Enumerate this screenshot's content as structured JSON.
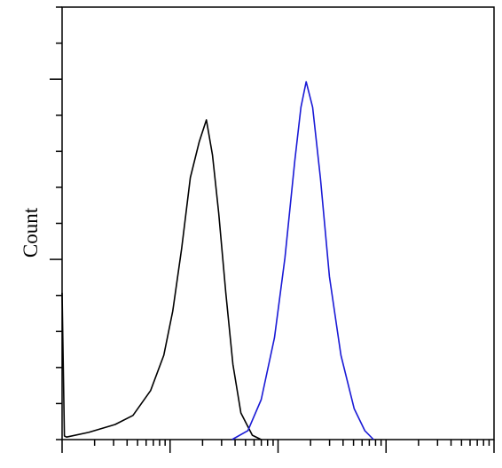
{
  "chart_data": {
    "type": "line",
    "ylabel": "Count",
    "xscale": "log",
    "xlim": [
      1,
      10000
    ],
    "xticks": [
      1,
      2,
      3,
      4,
      5,
      6,
      7,
      8,
      9,
      10,
      20,
      30,
      40,
      50,
      60,
      70,
      80,
      90,
      100,
      200,
      300,
      400,
      500,
      600,
      700,
      800,
      900,
      1000,
      2000,
      3000,
      4000,
      5000,
      6000,
      7000,
      8000,
      9000,
      10000
    ],
    "ylim": [
      0,
      12
    ],
    "yticks": [
      0,
      1,
      2,
      3,
      4,
      5,
      6,
      7,
      8,
      9,
      10,
      11,
      12
    ],
    "series": [
      {
        "color": "#000000",
        "x": [
          1.0,
          1.05,
          1.1,
          1.76,
          3.1,
          4.53,
          6.6,
          8.76,
          10.6,
          12.8,
          15.4,
          18.6,
          21.7,
          24.7,
          28.2,
          32.8,
          38.2,
          45.3,
          57.8,
          69.8
        ],
        "values": [
          4.07,
          0.1,
          0.07,
          0.2,
          0.42,
          0.67,
          1.36,
          2.34,
          3.57,
          5.3,
          7.27,
          8.26,
          8.87,
          7.89,
          6.28,
          4.07,
          2.09,
          0.74,
          0.12,
          0
        ]
      },
      {
        "color": "#1a1ad6",
        "x": [
          37.5,
          52.6,
          69.8,
          92.7,
          116,
          143,
          163,
          182,
          209,
          247,
          299,
          382,
          507,
          636,
          767
        ],
        "values": [
          0,
          0.25,
          1.11,
          2.83,
          5.05,
          7.74,
          9.22,
          9.93,
          9.22,
          7.25,
          4.53,
          2.34,
          0.86,
          0.25,
          0
        ]
      }
    ]
  }
}
